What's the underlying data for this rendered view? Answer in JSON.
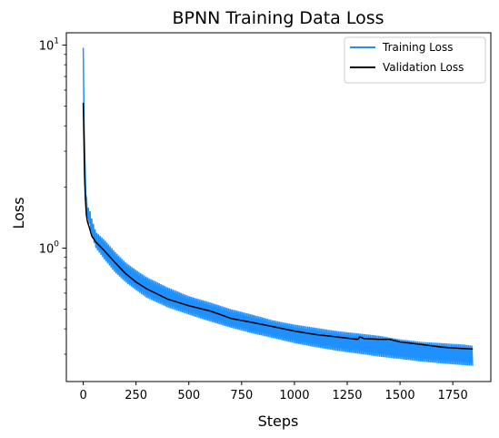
{
  "chart_data": {
    "type": "line",
    "title": "BPNN Training Data Loss",
    "xlabel": "Steps",
    "ylabel": "Loss",
    "yscale": "log",
    "xlim": [
      -80,
      1930
    ],
    "ylim": [
      0.22,
      11.5
    ],
    "xticks": [
      0,
      250,
      500,
      750,
      1000,
      1250,
      1500,
      1750
    ],
    "yticks_major": [
      {
        "value": 1,
        "label": "10",
        "exp": "0"
      },
      {
        "value": 10,
        "label": "10",
        "exp": "1"
      }
    ],
    "yticks_minor": [
      0.3,
      0.4,
      0.5,
      0.6,
      0.7,
      0.8,
      0.9,
      2,
      3,
      4,
      5,
      6,
      7,
      8,
      9
    ],
    "legend_position": "top-right",
    "series": [
      {
        "name": "Training Loss",
        "color": "#1e90ff",
        "envelope_upper": [
          [
            0,
            9.7
          ],
          [
            3,
            6.0
          ],
          [
            6,
            3.2
          ],
          [
            10,
            2.3
          ],
          [
            15,
            1.8
          ],
          [
            20,
            1.6
          ],
          [
            30,
            1.55
          ],
          [
            40,
            1.4
          ],
          [
            60,
            1.2
          ],
          [
            100,
            1.1
          ],
          [
            150,
            0.96
          ],
          [
            200,
            0.85
          ],
          [
            250,
            0.78
          ],
          [
            300,
            0.72
          ],
          [
            400,
            0.64
          ],
          [
            500,
            0.58
          ],
          [
            600,
            0.54
          ],
          [
            700,
            0.5
          ],
          [
            800,
            0.47
          ],
          [
            900,
            0.44
          ],
          [
            1000,
            0.42
          ],
          [
            1100,
            0.405
          ],
          [
            1200,
            0.39
          ],
          [
            1300,
            0.38
          ],
          [
            1400,
            0.37
          ],
          [
            1500,
            0.355
          ],
          [
            1600,
            0.345
          ],
          [
            1700,
            0.34
          ],
          [
            1800,
            0.335
          ],
          [
            1845,
            0.33
          ]
        ],
        "envelope_lower": [
          [
            0,
            9.7
          ],
          [
            3,
            5.0
          ],
          [
            6,
            2.8
          ],
          [
            10,
            2.0
          ],
          [
            15,
            1.6
          ],
          [
            20,
            1.4
          ],
          [
            30,
            1.3
          ],
          [
            40,
            1.15
          ],
          [
            60,
            1.0
          ],
          [
            100,
            0.88
          ],
          [
            150,
            0.76
          ],
          [
            200,
            0.68
          ],
          [
            250,
            0.62
          ],
          [
            300,
            0.57
          ],
          [
            400,
            0.51
          ],
          [
            500,
            0.47
          ],
          [
            600,
            0.435
          ],
          [
            700,
            0.405
          ],
          [
            800,
            0.38
          ],
          [
            900,
            0.36
          ],
          [
            1000,
            0.34
          ],
          [
            1100,
            0.325
          ],
          [
            1200,
            0.312
          ],
          [
            1300,
            0.302
          ],
          [
            1400,
            0.292
          ],
          [
            1500,
            0.284
          ],
          [
            1600,
            0.276
          ],
          [
            1700,
            0.27
          ],
          [
            1800,
            0.265
          ],
          [
            1845,
            0.263
          ]
        ]
      },
      {
        "name": "Validation Loss",
        "color": "#000000",
        "points": [
          [
            0,
            5.2
          ],
          [
            3,
            3.6
          ],
          [
            6,
            2.3
          ],
          [
            10,
            1.75
          ],
          [
            15,
            1.45
          ],
          [
            20,
            1.35
          ],
          [
            30,
            1.25
          ],
          [
            40,
            1.15
          ],
          [
            60,
            1.07
          ],
          [
            100,
            0.97
          ],
          [
            150,
            0.85
          ],
          [
            200,
            0.75
          ],
          [
            250,
            0.68
          ],
          [
            300,
            0.63
          ],
          [
            400,
            0.56
          ],
          [
            500,
            0.52
          ],
          [
            600,
            0.49
          ],
          [
            650,
            0.47
          ],
          [
            700,
            0.45
          ],
          [
            800,
            0.43
          ],
          [
            900,
            0.41
          ],
          [
            1000,
            0.39
          ],
          [
            1100,
            0.375
          ],
          [
            1200,
            0.365
          ],
          [
            1300,
            0.355
          ],
          [
            1310,
            0.365
          ],
          [
            1330,
            0.358
          ],
          [
            1400,
            0.355
          ],
          [
            1450,
            0.355
          ],
          [
            1500,
            0.345
          ],
          [
            1600,
            0.335
          ],
          [
            1700,
            0.325
          ],
          [
            1750,
            0.322
          ],
          [
            1800,
            0.32
          ],
          [
            1845,
            0.318
          ]
        ]
      }
    ]
  }
}
